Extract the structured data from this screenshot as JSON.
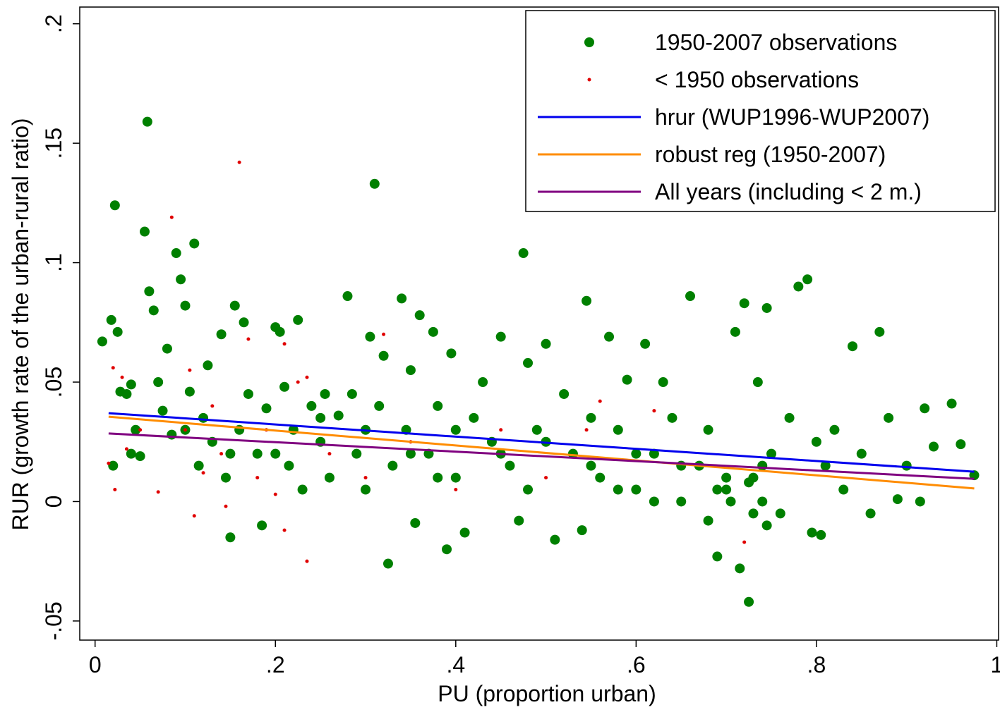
{
  "chart_data": {
    "type": "scatter",
    "xlabel": "PU (proportion urban)",
    "ylabel": "RUR (growth rate of the urban-rural ratio)",
    "xlim": [
      -0.017,
      1.002
    ],
    "ylim": [
      -0.058,
      0.207
    ],
    "xticks": [
      0,
      {
        "value": 0.2,
        "label": ".2"
      },
      {
        "value": 0.4,
        "label": ".4"
      },
      {
        "value": 0.6,
        "label": ".6"
      },
      {
        "value": 0.8,
        "label": ".8"
      },
      1
    ],
    "yticks": [
      {
        "value": -0.05,
        "label": "-.05"
      },
      0,
      {
        "value": 0.05,
        "label": ".05"
      },
      {
        "value": 0.1,
        "label": ".1"
      },
      {
        "value": 0.15,
        "label": ".15"
      },
      {
        "value": 0.2,
        "label": ".2"
      }
    ],
    "legend": "top right",
    "series": [
      {
        "name": "1950-2007 observations",
        "type": "scatter",
        "color": "#008000",
        "x": [
          0.008,
          0.018,
          0.022,
          0.025,
          0.028,
          0.035,
          0.04,
          0.045,
          0.05,
          0.055,
          0.058,
          0.06,
          0.065,
          0.07,
          0.075,
          0.08,
          0.085,
          0.09,
          0.095,
          0.1,
          0.105,
          0.11,
          0.115,
          0.12,
          0.125,
          0.13,
          0.14,
          0.145,
          0.15,
          0.155,
          0.16,
          0.165,
          0.17,
          0.18,
          0.185,
          0.19,
          0.2,
          0.205,
          0.21,
          0.215,
          0.22,
          0.225,
          0.23,
          0.24,
          0.25,
          0.255,
          0.26,
          0.27,
          0.28,
          0.285,
          0.29,
          0.3,
          0.305,
          0.31,
          0.315,
          0.32,
          0.325,
          0.33,
          0.34,
          0.345,
          0.35,
          0.355,
          0.36,
          0.37,
          0.375,
          0.38,
          0.39,
          0.395,
          0.4,
          0.41,
          0.42,
          0.43,
          0.44,
          0.45,
          0.46,
          0.47,
          0.475,
          0.48,
          0.49,
          0.5,
          0.51,
          0.52,
          0.53,
          0.54,
          0.545,
          0.55,
          0.56,
          0.57,
          0.58,
          0.59,
          0.6,
          0.61,
          0.62,
          0.63,
          0.64,
          0.65,
          0.66,
          0.67,
          0.68,
          0.69,
          0.7,
          0.71,
          0.715,
          0.72,
          0.725,
          0.73,
          0.735,
          0.74,
          0.745,
          0.75,
          0.76,
          0.77,
          0.78,
          0.79,
          0.795,
          0.8,
          0.805,
          0.81,
          0.82,
          0.83,
          0.84,
          0.85,
          0.86,
          0.87,
          0.88,
          0.89,
          0.9,
          0.915,
          0.92,
          0.93,
          0.95,
          0.96,
          0.975,
          0.7,
          0.705,
          0.725,
          0.73,
          0.74,
          0.745,
          0.69,
          0.68,
          0.15,
          0.2,
          0.25,
          0.3,
          0.35,
          0.4,
          0.45,
          0.5,
          0.55,
          0.6,
          0.65,
          0.04,
          0.1,
          0.02,
          0.38,
          0.48,
          0.58,
          0.62
        ],
        "values": [
          0.067,
          0.076,
          0.124,
          0.071,
          0.046,
          0.045,
          0.049,
          0.03,
          0.019,
          0.113,
          0.159,
          0.088,
          0.08,
          0.05,
          0.038,
          0.064,
          0.028,
          0.104,
          0.093,
          0.082,
          0.046,
          0.108,
          0.015,
          0.035,
          0.057,
          0.025,
          0.07,
          0.01,
          -0.015,
          0.082,
          0.03,
          0.075,
          0.045,
          0.02,
          -0.01,
          0.039,
          0.073,
          0.071,
          0.048,
          0.015,
          0.03,
          0.076,
          0.005,
          0.04,
          0.025,
          0.045,
          0.01,
          0.036,
          0.086,
          0.045,
          0.02,
          0.005,
          0.069,
          0.133,
          0.04,
          0.061,
          -0.026,
          0.015,
          0.085,
          0.03,
          0.055,
          -0.009,
          0.078,
          0.02,
          0.071,
          0.04,
          -0.02,
          0.062,
          0.01,
          -0.013,
          0.035,
          0.05,
          0.025,
          0.069,
          0.015,
          -0.008,
          0.104,
          0.058,
          0.03,
          0.066,
          -0.016,
          0.045,
          0.02,
          -0.012,
          0.084,
          0.035,
          0.01,
          0.069,
          0.03,
          0.051,
          0.005,
          0.066,
          0.02,
          0.05,
          0.035,
          0.0,
          0.086,
          0.015,
          0.03,
          -0.023,
          0.005,
          0.071,
          -0.028,
          0.083,
          -0.042,
          0.01,
          0.05,
          0.0,
          0.081,
          0.02,
          -0.005,
          0.035,
          0.09,
          0.093,
          -0.013,
          0.025,
          -0.014,
          0.015,
          0.03,
          0.005,
          0.065,
          0.02,
          -0.005,
          0.071,
          0.035,
          0.001,
          0.015,
          0.0,
          0.039,
          0.023,
          0.041,
          0.024,
          0.011,
          0.01,
          0.0,
          0.008,
          -0.005,
          0.015,
          -0.01,
          0.005,
          -0.008,
          0.02,
          0.02,
          0.035,
          0.03,
          0.02,
          0.03,
          0.02,
          0.025,
          0.015,
          0.02,
          0.015,
          0.02,
          0.03,
          0.015,
          0.01,
          0.005,
          0.005,
          0.0
        ]
      },
      {
        "name": "< 1950 observations",
        "type": "scatter",
        "color": "#e00000",
        "x": [
          0.02,
          0.022,
          0.03,
          0.035,
          0.07,
          0.085,
          0.1,
          0.105,
          0.11,
          0.12,
          0.13,
          0.14,
          0.145,
          0.16,
          0.17,
          0.18,
          0.19,
          0.2,
          0.21,
          0.21,
          0.225,
          0.235,
          0.235,
          0.26,
          0.32,
          0.3,
          0.35,
          0.4,
          0.45,
          0.5,
          0.545,
          0.56,
          0.62,
          0.72,
          0.015,
          0.05
        ],
        "values": [
          0.056,
          0.005,
          0.052,
          0.022,
          0.004,
          0.119,
          0.03,
          0.055,
          -0.006,
          0.012,
          0.04,
          0.02,
          -0.002,
          0.142,
          0.068,
          0.01,
          0.03,
          0.003,
          0.066,
          -0.012,
          0.05,
          0.052,
          -0.025,
          0.02,
          0.07,
          0.01,
          0.025,
          0.005,
          0.03,
          0.01,
          0.03,
          0.042,
          0.038,
          -0.017,
          0.016,
          0.03
        ]
      },
      {
        "name": "hrur (WUP1996-WUP2007)",
        "type": "line",
        "color": "#0000ee",
        "x": [
          0.015,
          0.975
        ],
        "values": [
          0.037,
          0.0125
        ]
      },
      {
        "name": "robust reg (1950-2007)",
        "type": "line",
        "color": "#ff8c00",
        "x": [
          0.015,
          0.975
        ],
        "values": [
          0.0355,
          0.0055
        ]
      },
      {
        "name": "All years (including < 2 m.)",
        "type": "line",
        "color": "#800080",
        "x": [
          0.015,
          0.975
        ],
        "values": [
          0.0285,
          0.0095
        ]
      }
    ]
  }
}
